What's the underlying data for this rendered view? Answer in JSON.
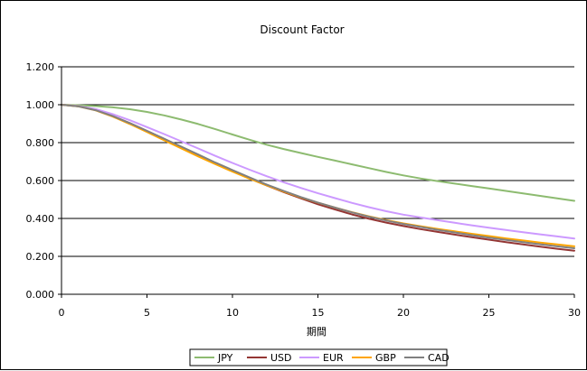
{
  "chart_data": {
    "type": "line",
    "title": "Discount Factor",
    "xlabel": "期間",
    "ylabel": "",
    "xlim": [
      0,
      30
    ],
    "ylim": [
      0,
      1.2
    ],
    "x_ticks": [
      0,
      5,
      10,
      15,
      20,
      25,
      30
    ],
    "y_ticks": [
      0,
      0.2,
      0.4,
      0.6,
      0.8,
      1.0,
      1.2
    ],
    "y_tick_labels": [
      "0.000",
      "0.200",
      "0.400",
      "0.600",
      "0.800",
      "1.000",
      "1.200"
    ],
    "x_tick_labels": [
      "0",
      "5",
      "10",
      "15",
      "20",
      "25",
      "30"
    ],
    "grid": "horizontal",
    "legend_position": "bottom",
    "x": [
      0,
      1,
      2,
      3,
      4,
      5,
      6,
      7,
      8,
      9,
      10,
      11,
      12,
      13,
      14,
      15,
      16,
      17,
      18,
      19,
      20,
      21,
      22,
      23,
      24,
      25,
      26,
      27,
      28,
      29,
      30
    ],
    "series": [
      {
        "name": "JPY",
        "color": "#8DBB70",
        "values": [
          1.0,
          0.997,
          0.993,
          0.986,
          0.976,
          0.962,
          0.944,
          0.922,
          0.898,
          0.871,
          0.843,
          0.815,
          0.789,
          0.766,
          0.745,
          0.725,
          0.705,
          0.685,
          0.665,
          0.645,
          0.627,
          0.611,
          0.597,
          0.584,
          0.571,
          0.558,
          0.545,
          0.532,
          0.519,
          0.506,
          0.493
        ]
      },
      {
        "name": "USD",
        "color": "#943634",
        "values": [
          1.0,
          0.992,
          0.972,
          0.94,
          0.903,
          0.862,
          0.82,
          0.776,
          0.733,
          0.69,
          0.65,
          0.611,
          0.574,
          0.539,
          0.506,
          0.475,
          0.447,
          0.421,
          0.398,
          0.378,
          0.36,
          0.344,
          0.329,
          0.315,
          0.301,
          0.288,
          0.275,
          0.263,
          0.251,
          0.24,
          0.23
        ]
      },
      {
        "name": "EUR",
        "color": "#CC99FF",
        "values": [
          1.0,
          0.993,
          0.977,
          0.95,
          0.918,
          0.882,
          0.845,
          0.807,
          0.769,
          0.73,
          0.693,
          0.657,
          0.623,
          0.591,
          0.561,
          0.533,
          0.507,
          0.482,
          0.459,
          0.438,
          0.42,
          0.405,
          0.391,
          0.377,
          0.364,
          0.351,
          0.339,
          0.327,
          0.316,
          0.305,
          0.294
        ]
      },
      {
        "name": "GBP",
        "color": "#FFA500",
        "values": [
          1.0,
          0.991,
          0.97,
          0.937,
          0.898,
          0.856,
          0.813,
          0.77,
          0.727,
          0.686,
          0.647,
          0.61,
          0.575,
          0.542,
          0.511,
          0.483,
          0.457,
          0.433,
          0.411,
          0.391,
          0.374,
          0.359,
          0.345,
          0.332,
          0.319,
          0.307,
          0.295,
          0.284,
          0.273,
          0.263,
          0.253
        ]
      },
      {
        "name": "CAD",
        "color": "#808080",
        "values": [
          1.0,
          0.991,
          0.971,
          0.94,
          0.903,
          0.862,
          0.821,
          0.779,
          0.737,
          0.695,
          0.655,
          0.616,
          0.579,
          0.545,
          0.513,
          0.484,
          0.457,
          0.432,
          0.409,
          0.389,
          0.371,
          0.355,
          0.34,
          0.326,
          0.312,
          0.299,
          0.287,
          0.275,
          0.264,
          0.253,
          0.243
        ]
      }
    ]
  }
}
